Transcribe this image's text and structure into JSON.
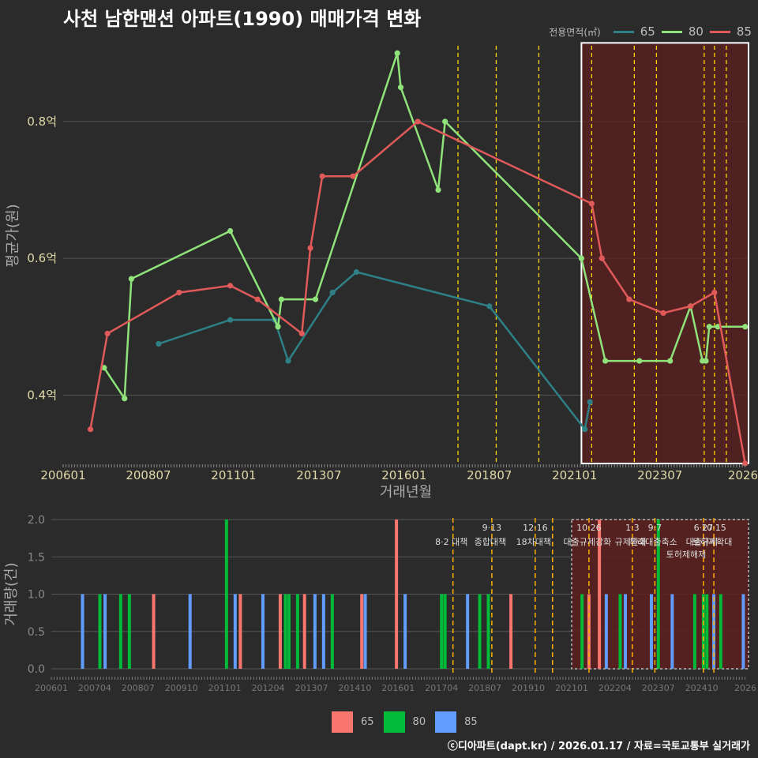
{
  "title": "사천 남한맨션 아파트(1990) 매매가격 변화",
  "legend_title": "전용면적(㎡)",
  "caption": "ⓒ디아파트(dapt.kr) / 2026.01.17 / 자료=국토교통부 실거래가",
  "colors": {
    "bg": "#2b2b2b",
    "grid": "#555555",
    "tick": "#e0d9a8",
    "s65": "#2e7f86",
    "s80": "#8fe37a",
    "s85": "#e05a5a",
    "vol65": "#f8766d",
    "vol80": "#00ba38",
    "vol85": "#619cff",
    "policy": "#ffd700",
    "highlight": "#5c1f1f"
  },
  "chart_data": [
    {
      "type": "line",
      "xlabel": "거래년월",
      "ylabel": "평균가(원)",
      "x_ticks": [
        "200601",
        "200807",
        "201101",
        "201307",
        "201601",
        "201807",
        "202101",
        "202307",
        "2026"
      ],
      "y_ticks": [
        {
          "v": 0.4,
          "label": "0.4억"
        },
        {
          "v": 0.6,
          "label": "0.6억"
        },
        {
          "v": 0.8,
          "label": "0.8억"
        }
      ],
      "xlim": [
        2006.0,
        2026.1
      ],
      "ylim": [
        0.3,
        0.92
      ],
      "highlight_range": [
        2021.2,
        2026.1,
        0.3,
        0.915
      ],
      "policy_lines": [
        2017.58,
        2018.7,
        2019.95,
        2021.5,
        2022.75,
        2023.4,
        2024.8,
        2025.1,
        2025.45
      ],
      "series": [
        {
          "name": "65",
          "points": [
            [
              2008.8,
              0.475
            ],
            [
              2010.9,
              0.51
            ],
            [
              2012.2,
              0.51
            ],
            [
              2012.6,
              0.45
            ],
            [
              2013.9,
              0.55
            ],
            [
              2014.6,
              0.58
            ],
            [
              2018.5,
              0.53
            ],
            [
              2021.3,
              0.35
            ],
            [
              2021.45,
              0.39
            ]
          ]
        },
        {
          "name": "80",
          "points": [
            [
              2007.2,
              0.44
            ],
            [
              2007.8,
              0.395
            ],
            [
              2008.0,
              0.57
            ],
            [
              2010.9,
              0.64
            ],
            [
              2012.3,
              0.5
            ],
            [
              2012.4,
              0.54
            ],
            [
              2013.4,
              0.54
            ],
            [
              2015.8,
              0.9
            ],
            [
              2015.9,
              0.85
            ],
            [
              2017.0,
              0.7
            ],
            [
              2017.2,
              0.8
            ],
            [
              2021.2,
              0.6
            ],
            [
              2021.9,
              0.45
            ],
            [
              2022.9,
              0.45
            ],
            [
              2023.8,
              0.45
            ],
            [
              2024.4,
              0.53
            ],
            [
              2024.75,
              0.45
            ],
            [
              2024.85,
              0.45
            ],
            [
              2024.95,
              0.5
            ],
            [
              2025.2,
              0.5
            ],
            [
              2026.0,
              0.5
            ]
          ]
        },
        {
          "name": "85",
          "points": [
            [
              2006.8,
              0.35
            ],
            [
              2007.3,
              0.49
            ],
            [
              2009.4,
              0.55
            ],
            [
              2010.9,
              0.56
            ],
            [
              2011.7,
              0.54
            ],
            [
              2013.0,
              0.49
            ],
            [
              2013.25,
              0.615
            ],
            [
              2013.6,
              0.72
            ],
            [
              2014.5,
              0.72
            ],
            [
              2016.4,
              0.8
            ],
            [
              2021.5,
              0.68
            ],
            [
              2021.8,
              0.6
            ],
            [
              2022.6,
              0.54
            ],
            [
              2023.6,
              0.52
            ],
            [
              2024.4,
              0.53
            ],
            [
              2025.1,
              0.55
            ],
            [
              2026.0,
              0.3
            ]
          ]
        }
      ]
    },
    {
      "type": "bar",
      "ylabel": "거래량(건)",
      "x_ticks": [
        "200601",
        "200704",
        "200807",
        "200910",
        "201101",
        "201204",
        "201307",
        "201410",
        "201601",
        "201704",
        "201807",
        "201910",
        "202101",
        "202204",
        "202307",
        "202410",
        "2026"
      ],
      "y_ticks": [
        {
          "v": 0,
          "label": "0.0"
        },
        {
          "v": 0.5,
          "label": "0.5"
        },
        {
          "v": 1,
          "label": "1.0"
        },
        {
          "v": 1.5,
          "label": "1.5"
        },
        {
          "v": 2,
          "label": "2.0"
        }
      ],
      "xlim": [
        2006.0,
        2026.1
      ],
      "ylim": [
        0,
        2.0
      ],
      "highlight_range": [
        2021.0,
        2026.1
      ],
      "policy_lines": [
        {
          "x": 2017.58,
          "date": "",
          "name": "8·2 대책"
        },
        {
          "x": 2018.7,
          "date": "9·13",
          "name": "종합대책"
        },
        {
          "x": 2019.95,
          "date": "12·16",
          "name": "18차대책"
        },
        {
          "x": 2020.45,
          "date": "",
          "name": ""
        },
        {
          "x": 2021.5,
          "date": "10·26",
          "name": "대출규제강화"
        },
        {
          "x": 2022.75,
          "date": "1·3",
          "name": "규제완화"
        },
        {
          "x": 2023.4,
          "date": "9·7",
          "name": "특례대출축소"
        },
        {
          "x": 2024.8,
          "date": "6·27",
          "name": "대출규제"
        },
        {
          "x": 2025.1,
          "date": "10·15",
          "name": "토허제확대"
        }
      ],
      "policy_extra": [
        {
          "x": 2024.3,
          "name": "토허제해제"
        }
      ],
      "bars": [
        {
          "x": 2006.9,
          "area": "85",
          "count": 1
        },
        {
          "x": 2007.4,
          "area": "80",
          "count": 1
        },
        {
          "x": 2007.55,
          "area": "85",
          "count": 1
        },
        {
          "x": 2008.0,
          "area": "80",
          "count": 1
        },
        {
          "x": 2008.25,
          "area": "80",
          "count": 1
        },
        {
          "x": 2008.95,
          "area": "65",
          "count": 1
        },
        {
          "x": 2010.0,
          "area": "85",
          "count": 1
        },
        {
          "x": 2011.05,
          "area": "80",
          "count": 2
        },
        {
          "x": 2011.3,
          "area": "85",
          "count": 1
        },
        {
          "x": 2011.45,
          "area": "65",
          "count": 1
        },
        {
          "x": 2012.1,
          "area": "85",
          "count": 1
        },
        {
          "x": 2012.6,
          "area": "65",
          "count": 1
        },
        {
          "x": 2012.75,
          "area": "80",
          "count": 1
        },
        {
          "x": 2012.85,
          "area": "80",
          "count": 1
        },
        {
          "x": 2013.1,
          "area": "80",
          "count": 1
        },
        {
          "x": 2013.3,
          "area": "65",
          "count": 1
        },
        {
          "x": 2013.6,
          "area": "85",
          "count": 1
        },
        {
          "x": 2013.85,
          "area": "85",
          "count": 1
        },
        {
          "x": 2014.1,
          "area": "80",
          "count": 1
        },
        {
          "x": 2014.95,
          "area": "65",
          "count": 1
        },
        {
          "x": 2015.05,
          "area": "85",
          "count": 1
        },
        {
          "x": 2015.95,
          "area": "65",
          "count": 2
        },
        {
          "x": 2016.2,
          "area": "85",
          "count": 1
        },
        {
          "x": 2017.25,
          "area": "80",
          "count": 1
        },
        {
          "x": 2017.35,
          "area": "80",
          "count": 1
        },
        {
          "x": 2018.0,
          "area": "85",
          "count": 1
        },
        {
          "x": 2018.35,
          "area": "80",
          "count": 1
        },
        {
          "x": 2018.6,
          "area": "80",
          "count": 1
        },
        {
          "x": 2019.25,
          "area": "65",
          "count": 1
        },
        {
          "x": 2021.3,
          "area": "80",
          "count": 1
        },
        {
          "x": 2021.5,
          "area": "65",
          "count": 1
        },
        {
          "x": 2021.8,
          "area": "65",
          "count": 2
        },
        {
          "x": 2022.0,
          "area": "85",
          "count": 1
        },
        {
          "x": 2022.4,
          "area": "80",
          "count": 1
        },
        {
          "x": 2022.55,
          "area": "85",
          "count": 1
        },
        {
          "x": 2023.3,
          "area": "85",
          "count": 1
        },
        {
          "x": 2023.5,
          "area": "80",
          "count": 2
        },
        {
          "x": 2023.9,
          "area": "85",
          "count": 1
        },
        {
          "x": 2024.55,
          "area": "80",
          "count": 1
        },
        {
          "x": 2024.8,
          "area": "80",
          "count": 1
        },
        {
          "x": 2024.9,
          "area": "80",
          "count": 1
        },
        {
          "x": 2025.1,
          "area": "85",
          "count": 1
        },
        {
          "x": 2025.3,
          "area": "80",
          "count": 1
        },
        {
          "x": 2025.95,
          "area": "85",
          "count": 1
        }
      ],
      "legend": [
        "65",
        "80",
        "85"
      ]
    }
  ]
}
